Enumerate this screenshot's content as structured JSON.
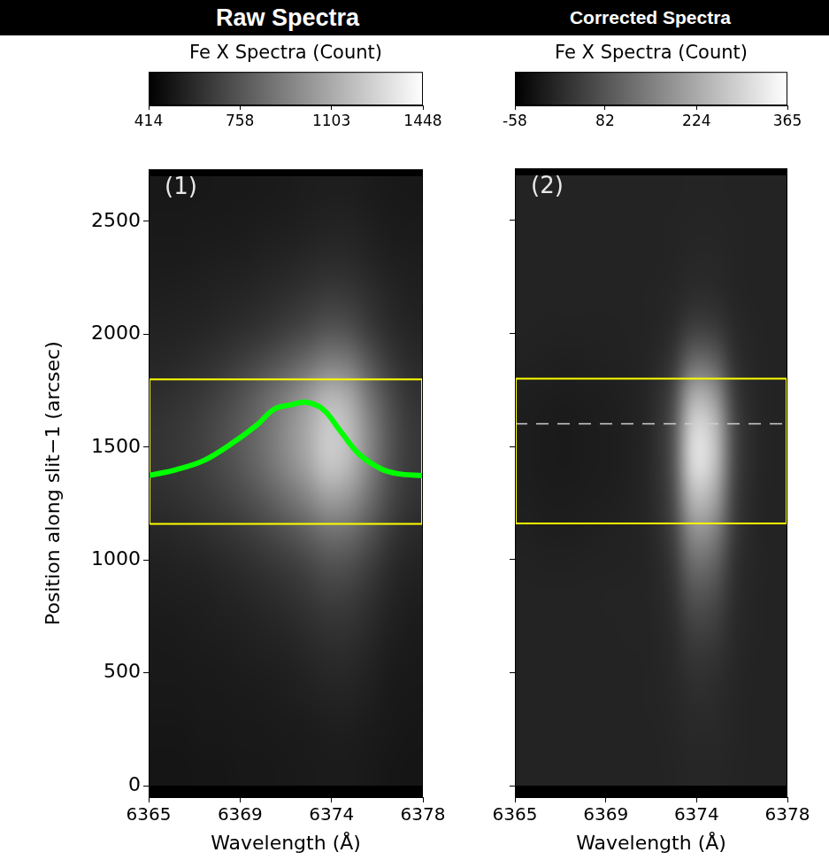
{
  "chart_data": [
    {
      "type": "heatmap",
      "title": "Raw Spectra",
      "annotation": "(1)",
      "xlabel": "Wavelength (Å)",
      "ylabel": "Position along slit−1 (arcsec)",
      "xlim": [
        6365,
        6378
      ],
      "xticks": [
        6365,
        {
          "value": 6369.333,
          "label": "6369"
        },
        {
          "value": 6373.667,
          "label": "6374"
        },
        6378
      ],
      "ylim": [
        -50,
        2730
      ],
      "yticks": [
        0,
        500,
        1000,
        1500,
        2000,
        2500
      ],
      "grid": false,
      "colorbar": {
        "label": "Fe X Spectra (Count)",
        "range": [
          414,
          1448
        ],
        "ticks": [
          414,
          758,
          1103,
          1448
        ]
      },
      "cells": {
        "x_bins": [
          6365,
          6366,
          6367,
          6368,
          6369,
          6370,
          6371,
          6372,
          6373,
          6374,
          6375,
          6376,
          6377,
          6378
        ],
        "y_bins": [
          0,
          150,
          300,
          450,
          600,
          750,
          900,
          1050,
          1200,
          1350,
          1500,
          1650,
          1800,
          1950,
          2100,
          2250,
          2400,
          2550,
          2700
        ],
        "values": [
          [
            500,
            500,
            505,
            505,
            510,
            510,
            515,
            520,
            525,
            525,
            515,
            505,
            500
          ],
          [
            505,
            505,
            510,
            510,
            515,
            515,
            520,
            525,
            530,
            530,
            520,
            510,
            505
          ],
          [
            510,
            510,
            515,
            515,
            520,
            525,
            530,
            540,
            550,
            550,
            535,
            515,
            510
          ],
          [
            515,
            515,
            520,
            525,
            530,
            535,
            545,
            560,
            575,
            575,
            550,
            525,
            515
          ],
          [
            520,
            525,
            530,
            535,
            545,
            555,
            570,
            590,
            610,
            610,
            575,
            540,
            525
          ],
          [
            530,
            535,
            540,
            550,
            565,
            580,
            600,
            630,
            660,
            655,
            610,
            560,
            535
          ],
          [
            545,
            550,
            560,
            575,
            595,
            620,
            650,
            690,
            740,
            730,
            660,
            590,
            555
          ],
          [
            570,
            580,
            595,
            620,
            650,
            690,
            740,
            800,
            870,
            850,
            750,
            640,
            585
          ],
          [
            600,
            615,
            640,
            675,
            720,
            780,
            860,
            950,
            1060,
            1020,
            860,
            700,
            620
          ],
          [
            620,
            640,
            670,
            720,
            780,
            860,
            960,
            1080,
            1220,
            1160,
            940,
            740,
            640
          ],
          [
            620,
            640,
            675,
            725,
            790,
            870,
            980,
            1100,
            1240,
            1180,
            950,
            745,
            640
          ],
          [
            600,
            615,
            645,
            690,
            750,
            830,
            920,
            1030,
            1150,
            1100,
            880,
            710,
            620
          ],
          [
            570,
            580,
            600,
            630,
            670,
            720,
            780,
            850,
            930,
            900,
            760,
            640,
            585
          ],
          [
            550,
            555,
            565,
            580,
            600,
            625,
            660,
            700,
            750,
            730,
            650,
            590,
            560
          ],
          [
            535,
            540,
            545,
            555,
            565,
            580,
            600,
            625,
            650,
            640,
            600,
            565,
            545
          ],
          [
            525,
            525,
            530,
            535,
            540,
            550,
            560,
            575,
            590,
            585,
            560,
            540,
            530
          ],
          [
            515,
            515,
            520,
            520,
            525,
            530,
            535,
            545,
            555,
            555,
            540,
            525,
            520
          ],
          [
            510,
            510,
            510,
            515,
            515,
            520,
            525,
            530,
            535,
            535,
            525,
            515,
            510
          ]
        ]
      },
      "region": {
        "x": [
          6365,
          6378
        ],
        "y": [
          1160,
          1800
        ],
        "color": "#ffff00"
      },
      "series": [
        {
          "type": "line",
          "color": "#00ff00",
          "x": [
            6365,
            6366.34,
            6367.6,
            6368.86,
            6370.12,
            6370.95,
            6371.79,
            6372.42,
            6373.26,
            6374.1,
            6374.94,
            6375.99,
            6376.82,
            6378
          ],
          "values": [
            1374,
            1401,
            1440,
            1511,
            1597,
            1668,
            1688,
            1699,
            1668,
            1570,
            1472,
            1405,
            1382,
            1374
          ]
        }
      ]
    },
    {
      "type": "heatmap",
      "title": "Corrected Spectra",
      "annotation": "(2)",
      "xlabel": "Wavelength (Å)",
      "xlim": [
        6365,
        6378
      ],
      "xticks": [
        6365,
        {
          "value": 6369.333,
          "label": "6369"
        },
        {
          "value": 6373.667,
          "label": "6374"
        },
        6378
      ],
      "ylim": [
        -50,
        2730
      ],
      "yticks": [
        0,
        500,
        1000,
        1500,
        2000,
        2500
      ],
      "grid": false,
      "tick_labels": "x",
      "colorbar": {
        "label": "Fe X Spectra (Count)",
        "range": [
          -58,
          365
        ],
        "ticks": [
          -58,
          82,
          224,
          365
        ]
      },
      "cells": {
        "x_bins": [
          6365,
          6366,
          6367,
          6368,
          6369,
          6370,
          6371,
          6372,
          6373,
          6374,
          6375,
          6376,
          6377,
          6378
        ],
        "y_bins": [
          0,
          150,
          300,
          450,
          600,
          750,
          900,
          1050,
          1200,
          1350,
          1500,
          1650,
          1800,
          1950,
          2100,
          2250,
          2400,
          2550,
          2700
        ],
        "values": [
          [
            0,
            0,
            0,
            0,
            0,
            0,
            0,
            2,
            5,
            5,
            2,
            0,
            0
          ],
          [
            0,
            0,
            0,
            0,
            0,
            0,
            0,
            3,
            8,
            8,
            3,
            0,
            0
          ],
          [
            0,
            0,
            0,
            0,
            0,
            0,
            1,
            5,
            15,
            14,
            4,
            0,
            0
          ],
          [
            0,
            0,
            0,
            0,
            0,
            0,
            1,
            8,
            25,
            22,
            6,
            0,
            0
          ],
          [
            0,
            0,
            0,
            0,
            0,
            1,
            2,
            12,
            45,
            40,
            10,
            1,
            0
          ],
          [
            0,
            0,
            0,
            0,
            1,
            1,
            3,
            20,
            75,
            65,
            15,
            2,
            0
          ],
          [
            -2,
            -3,
            -3,
            -2,
            -1,
            0,
            4,
            30,
            120,
            105,
            22,
            3,
            0
          ],
          [
            -5,
            -8,
            -8,
            -6,
            -4,
            -2,
            6,
            45,
            180,
            160,
            35,
            4,
            0
          ],
          [
            -8,
            -12,
            -12,
            -10,
            -8,
            -4,
            8,
            60,
            250,
            220,
            45,
            5,
            0
          ],
          [
            -10,
            -14,
            -15,
            -12,
            -10,
            -5,
            10,
            70,
            310,
            270,
            55,
            6,
            0
          ],
          [
            -10,
            -14,
            -15,
            -12,
            -10,
            -5,
            10,
            70,
            300,
            265,
            55,
            6,
            0
          ],
          [
            -8,
            -10,
            -12,
            -10,
            -8,
            -4,
            8,
            55,
            230,
            200,
            40,
            5,
            0
          ],
          [
            -4,
            -5,
            -6,
            -5,
            -4,
            -2,
            5,
            30,
            120,
            105,
            22,
            3,
            0
          ],
          [
            0,
            -1,
            -1,
            -1,
            -1,
            0,
            2,
            12,
            45,
            40,
            10,
            1,
            0
          ],
          [
            0,
            0,
            0,
            0,
            0,
            0,
            1,
            5,
            15,
            14,
            4,
            0,
            0
          ],
          [
            0,
            0,
            0,
            0,
            0,
            0,
            0,
            2,
            6,
            6,
            2,
            0,
            0
          ],
          [
            0,
            0,
            0,
            0,
            0,
            0,
            0,
            1,
            3,
            3,
            1,
            0,
            0
          ],
          [
            0,
            0,
            0,
            0,
            0,
            0,
            0,
            0,
            2,
            2,
            0,
            0,
            0
          ]
        ]
      },
      "region": {
        "x": [
          6365,
          6378
        ],
        "y": [
          1160,
          1800
        ],
        "color": "#ffff00"
      },
      "reference_line": {
        "y": 1600,
        "color": "#d0d0d0",
        "line_style": "dashed"
      }
    }
  ]
}
